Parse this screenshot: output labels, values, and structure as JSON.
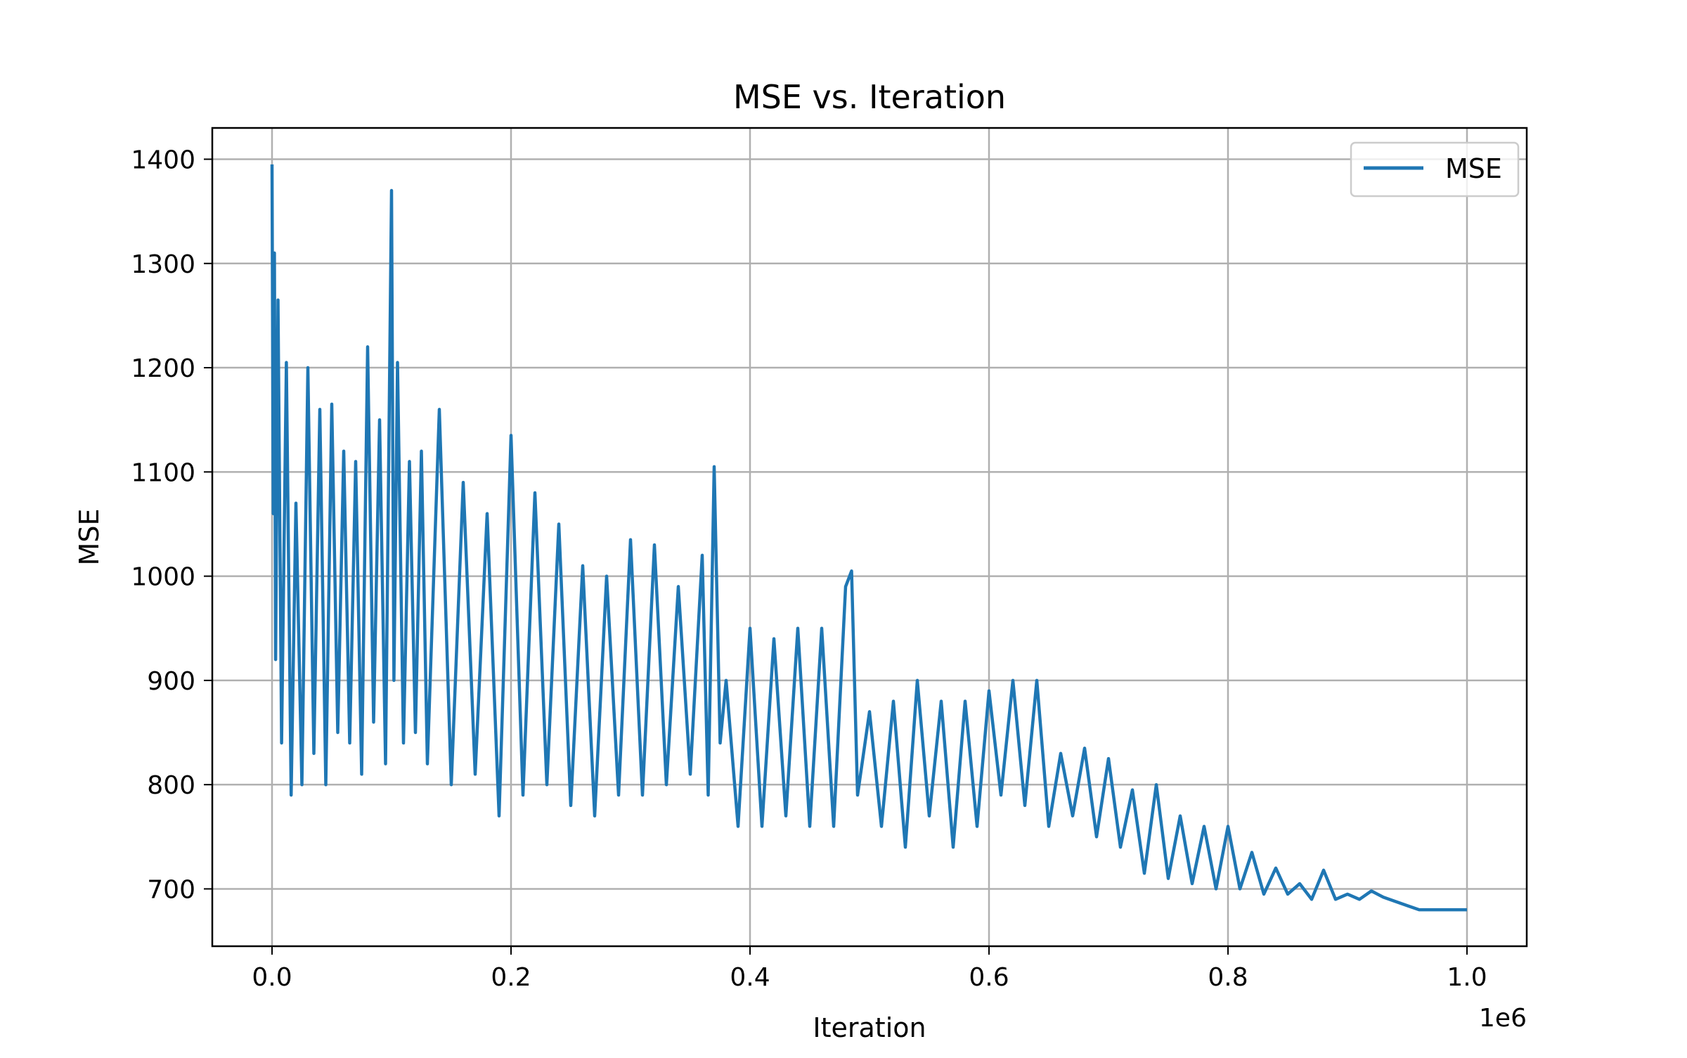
{
  "chart_data": {
    "type": "line",
    "title": "MSE vs. Iteration",
    "xlabel": "Iteration",
    "ylabel": "MSE",
    "x_offset_label": "1e6",
    "xlim": [
      -50000,
      1050000
    ],
    "ylim": [
      645,
      1430
    ],
    "x_ticks": [
      0,
      200000,
      400000,
      600000,
      800000,
      1000000
    ],
    "x_tick_labels": [
      "0.0",
      "0.2",
      "0.4",
      "0.6",
      "0.8",
      "1.0"
    ],
    "y_ticks": [
      700,
      800,
      900,
      1000,
      1100,
      1200,
      1300,
      1400
    ],
    "y_tick_labels": [
      "700",
      "800",
      "900",
      "1000",
      "1100",
      "1200",
      "1300",
      "1400"
    ],
    "grid": true,
    "legend_position": "top-right",
    "colors": {
      "series": "#1f77b4"
    },
    "series": [
      {
        "name": "MSE",
        "x": [
          0,
          1000,
          2000,
          3000,
          5000,
          8000,
          12000,
          16000,
          20000,
          25000,
          30000,
          35000,
          40000,
          45000,
          50000,
          55000,
          60000,
          65000,
          70000,
          75000,
          80000,
          85000,
          90000,
          95000,
          100000,
          102000,
          105000,
          110000,
          115000,
          120000,
          125000,
          130000,
          140000,
          150000,
          160000,
          170000,
          180000,
          190000,
          200000,
          210000,
          220000,
          230000,
          240000,
          250000,
          260000,
          270000,
          280000,
          290000,
          300000,
          310000,
          320000,
          330000,
          340000,
          350000,
          360000,
          365000,
          370000,
          375000,
          380000,
          390000,
          400000,
          410000,
          420000,
          430000,
          440000,
          450000,
          460000,
          470000,
          480000,
          485000,
          490000,
          500000,
          510000,
          520000,
          530000,
          540000,
          550000,
          560000,
          570000,
          580000,
          590000,
          600000,
          610000,
          620000,
          630000,
          640000,
          650000,
          660000,
          670000,
          680000,
          690000,
          700000,
          710000,
          720000,
          730000,
          740000,
          750000,
          760000,
          770000,
          780000,
          790000,
          800000,
          810000,
          820000,
          830000,
          840000,
          850000,
          860000,
          870000,
          880000,
          890000,
          900000,
          910000,
          920000,
          930000,
          940000,
          950000,
          960000,
          980000,
          1000000
        ],
        "y": [
          1395,
          1060,
          1310,
          920,
          1265,
          840,
          1205,
          790,
          1070,
          800,
          1200,
          830,
          1160,
          800,
          1165,
          850,
          1120,
          840,
          1110,
          810,
          1220,
          860,
          1150,
          820,
          1370,
          900,
          1205,
          840,
          1110,
          850,
          1120,
          820,
          1160,
          800,
          1090,
          810,
          1060,
          770,
          1135,
          790,
          1080,
          800,
          1050,
          780,
          1010,
          770,
          1000,
          790,
          1035,
          790,
          1030,
          800,
          990,
          810,
          1020,
          790,
          1105,
          840,
          900,
          760,
          950,
          760,
          940,
          770,
          950,
          760,
          950,
          760,
          990,
          1005,
          790,
          870,
          760,
          880,
          740,
          900,
          770,
          880,
          740,
          880,
          760,
          890,
          790,
          900,
          780,
          900,
          760,
          830,
          770,
          835,
          750,
          825,
          740,
          795,
          715,
          800,
          710,
          770,
          705,
          760,
          700,
          760,
          700,
          735,
          695,
          720,
          695,
          705,
          690,
          718,
          690,
          695,
          690,
          698,
          692,
          688,
          684,
          680,
          680,
          680
        ]
      }
    ]
  }
}
